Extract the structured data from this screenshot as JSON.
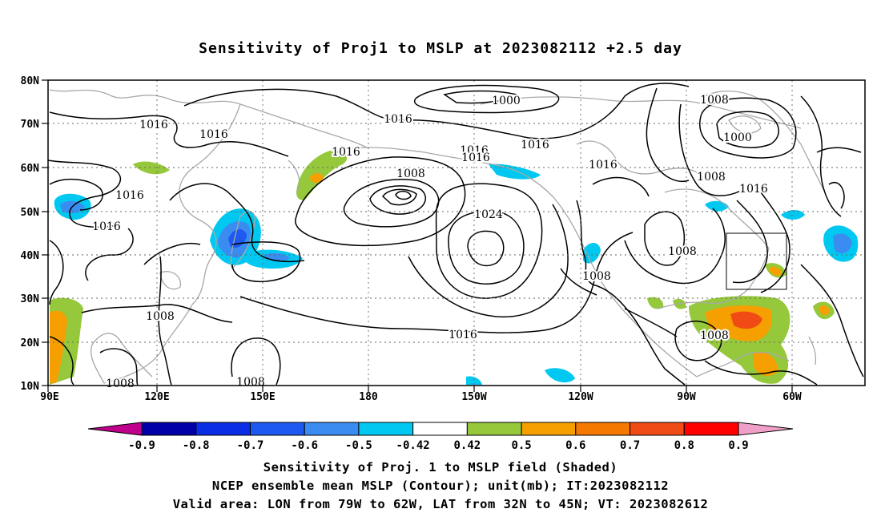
{
  "title": "Sensitivity of Proj1 to MSLP at 2023082112 +2.5 day",
  "lat_labels": [
    "80N",
    "70N",
    "60N",
    "50N",
    "40N",
    "30N",
    "20N",
    "10N"
  ],
  "lon_labels": [
    "90E",
    "120E",
    "150E",
    "180",
    "150W",
    "120W",
    "90W",
    "60W"
  ],
  "contour_labels": [
    {
      "text": "1000"
    },
    {
      "text": "1016"
    },
    {
      "text": "1008"
    },
    {
      "text": "1016"
    },
    {
      "text": "1016"
    },
    {
      "text": "1000"
    },
    {
      "text": "1016"
    },
    {
      "text": "1016"
    },
    {
      "text": "1016"
    },
    {
      "text": "1016"
    },
    {
      "text": "1016"
    },
    {
      "text": "1008"
    },
    {
      "text": "1016"
    },
    {
      "text": "1016"
    },
    {
      "text": "1024"
    },
    {
      "text": "1016"
    },
    {
      "text": "1008"
    },
    {
      "text": "1008"
    },
    {
      "text": "1008"
    },
    {
      "text": "1008"
    },
    {
      "text": "1016"
    },
    {
      "text": "1008"
    },
    {
      "text": "1008"
    },
    {
      "text": "1008"
    }
  ],
  "colorbar": {
    "labels": [
      "-0.9",
      "-0.8",
      "-0.7",
      "-0.6",
      "-0.5",
      "-0.42",
      "0.42",
      "0.5",
      "0.6",
      "0.7",
      "0.8",
      "0.9"
    ],
    "colors": [
      "#0000a8",
      "#0a2ee6",
      "#1e5af0",
      "#3a8cf0",
      "#00c8f0",
      "#ffffff",
      "#96c83c",
      "#f5a000",
      "#f57800",
      "#f04b14",
      "#ff0000"
    ],
    "low_end_color": "#c0008c",
    "high_end_color": "#f0a0c8"
  },
  "captions": [
    "Sensitivity of Proj. 1 to MSLP field (Shaded)",
    "NCEP ensemble mean MSLP (Contour); unit(mb); IT:2023082112",
    "Valid area: LON from 79W to 62W, LAT from 32N to 45N; VT: 2023082612"
  ]
}
